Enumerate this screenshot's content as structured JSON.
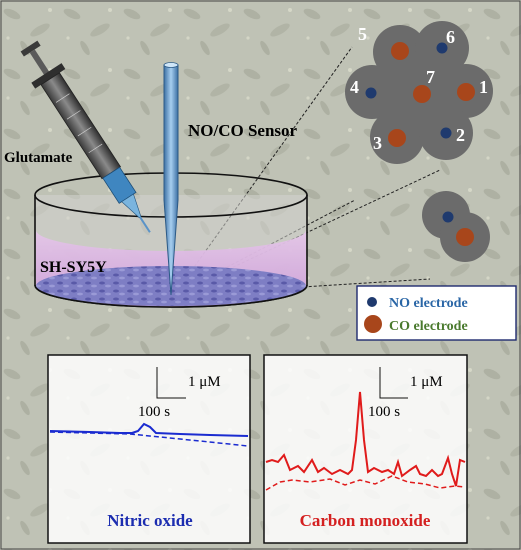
{
  "labels": {
    "glutamate": "Glutamate",
    "sensor": "NO/CO Sensor",
    "cell_line": "SH-SY5Y"
  },
  "electrodes": {
    "numbers": [
      "5",
      "6",
      "4",
      "7",
      "1",
      "3",
      "2"
    ],
    "types": [
      "CO",
      "NO",
      "NO",
      "CO",
      "CO",
      "CO",
      "NO"
    ]
  },
  "legend": {
    "no_label": "NO electrode",
    "co_label": "CO electrode"
  },
  "colors": {
    "no_electrode": "#1f3a6e",
    "co_electrode": "#a8461b",
    "sensor_tip": "#5a93c8",
    "no_trace": "#1a2bd0",
    "co_trace": "#e01b1b",
    "no_title": "#1c2db0",
    "co_title": "#d42020"
  },
  "panels": [
    {
      "title": "Nitric oxide",
      "scale_y": "1 μM",
      "scale_x": "100 s"
    },
    {
      "title": "Carbon monoxide",
      "scale_y": "1 μM",
      "scale_x": "100 s"
    }
  ]
}
